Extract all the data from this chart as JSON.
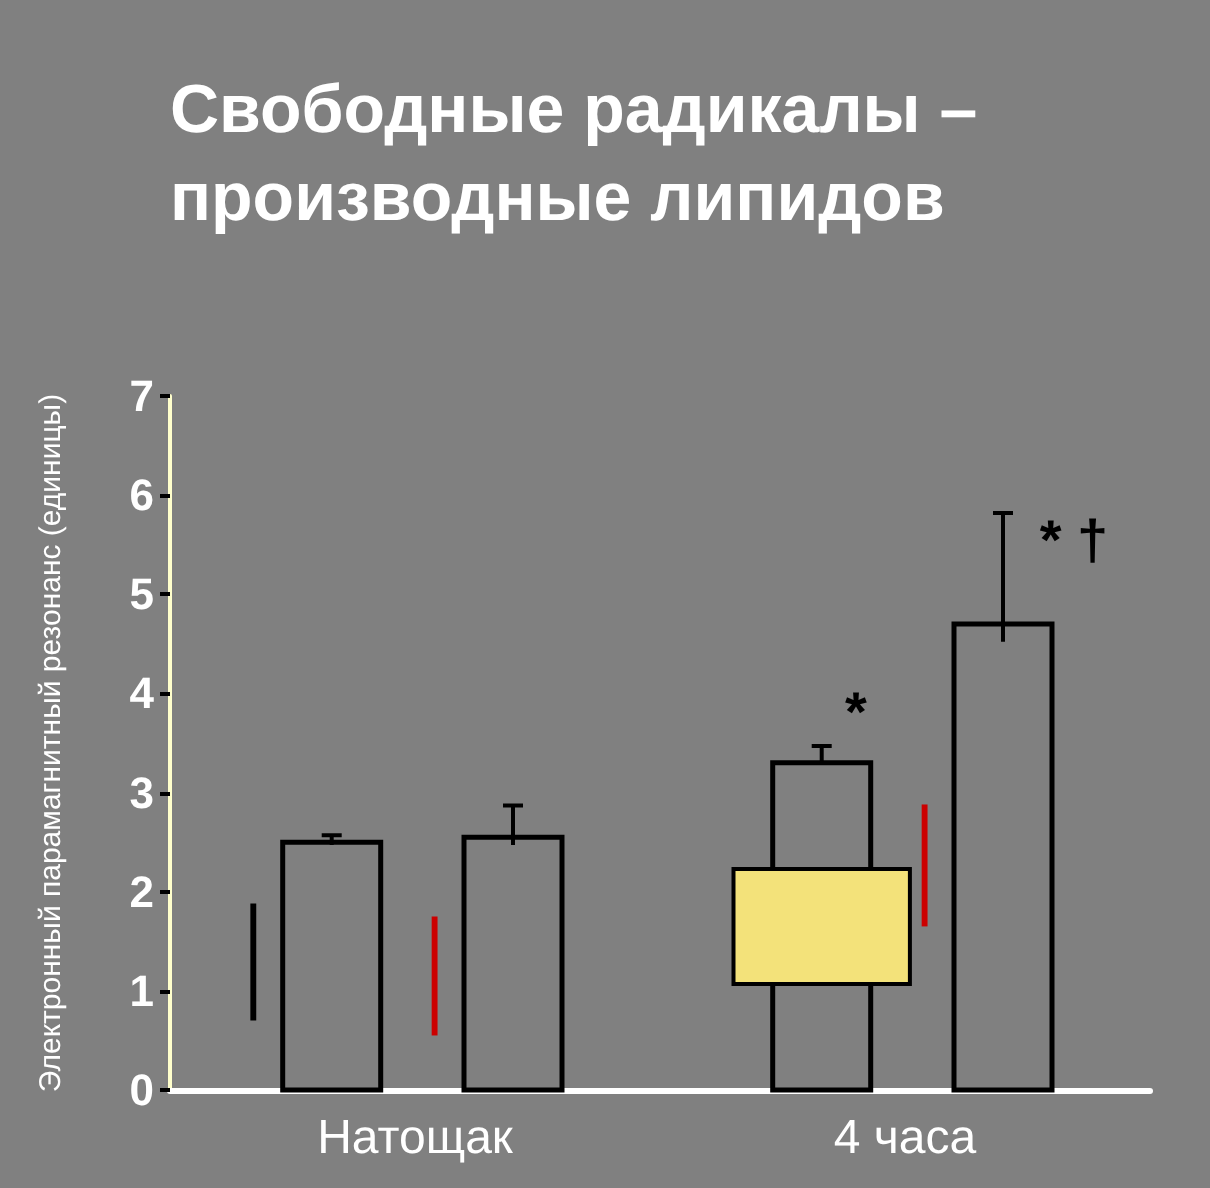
{
  "chart_data": {
    "type": "bar",
    "title": "Свободные радикалы –\nпроизводные липидов",
    "ylabel": "Электронный парамагнитный резонанс (единицы)",
    "categories": [
      "Натощак",
      "4 часа"
    ],
    "series": [
      {
        "color": "#000000",
        "values": [
          1.18,
          null
        ],
        "base": [
          0.7,
          null
        ]
      },
      {
        "color": "#f3e27a",
        "values": [
          null,
          1.16
        ],
        "base": [
          null,
          1.07
        ]
      },
      {
        "color": "#000000",
        "values": [
          2.5,
          3.3
        ],
        "errors": [
          [
            2.47,
            2.57
          ],
          [
            3.3,
            3.47
          ]
        ]
      },
      {
        "color": "#cc0000",
        "values": [
          1.2,
          1.23
        ],
        "base": [
          0.55,
          1.65
        ]
      },
      {
        "color": "#000000",
        "values": [
          2.55,
          4.7
        ],
        "errors": [
          [
            2.47,
            2.87
          ],
          [
            4.52,
            5.82
          ]
        ]
      }
    ],
    "ylim": [
      0,
      7
    ],
    "yticks": [
      0,
      1,
      2,
      3,
      4,
      5,
      6,
      7
    ],
    "grid": false,
    "annotations": [
      "*",
      "* †"
    ]
  }
}
